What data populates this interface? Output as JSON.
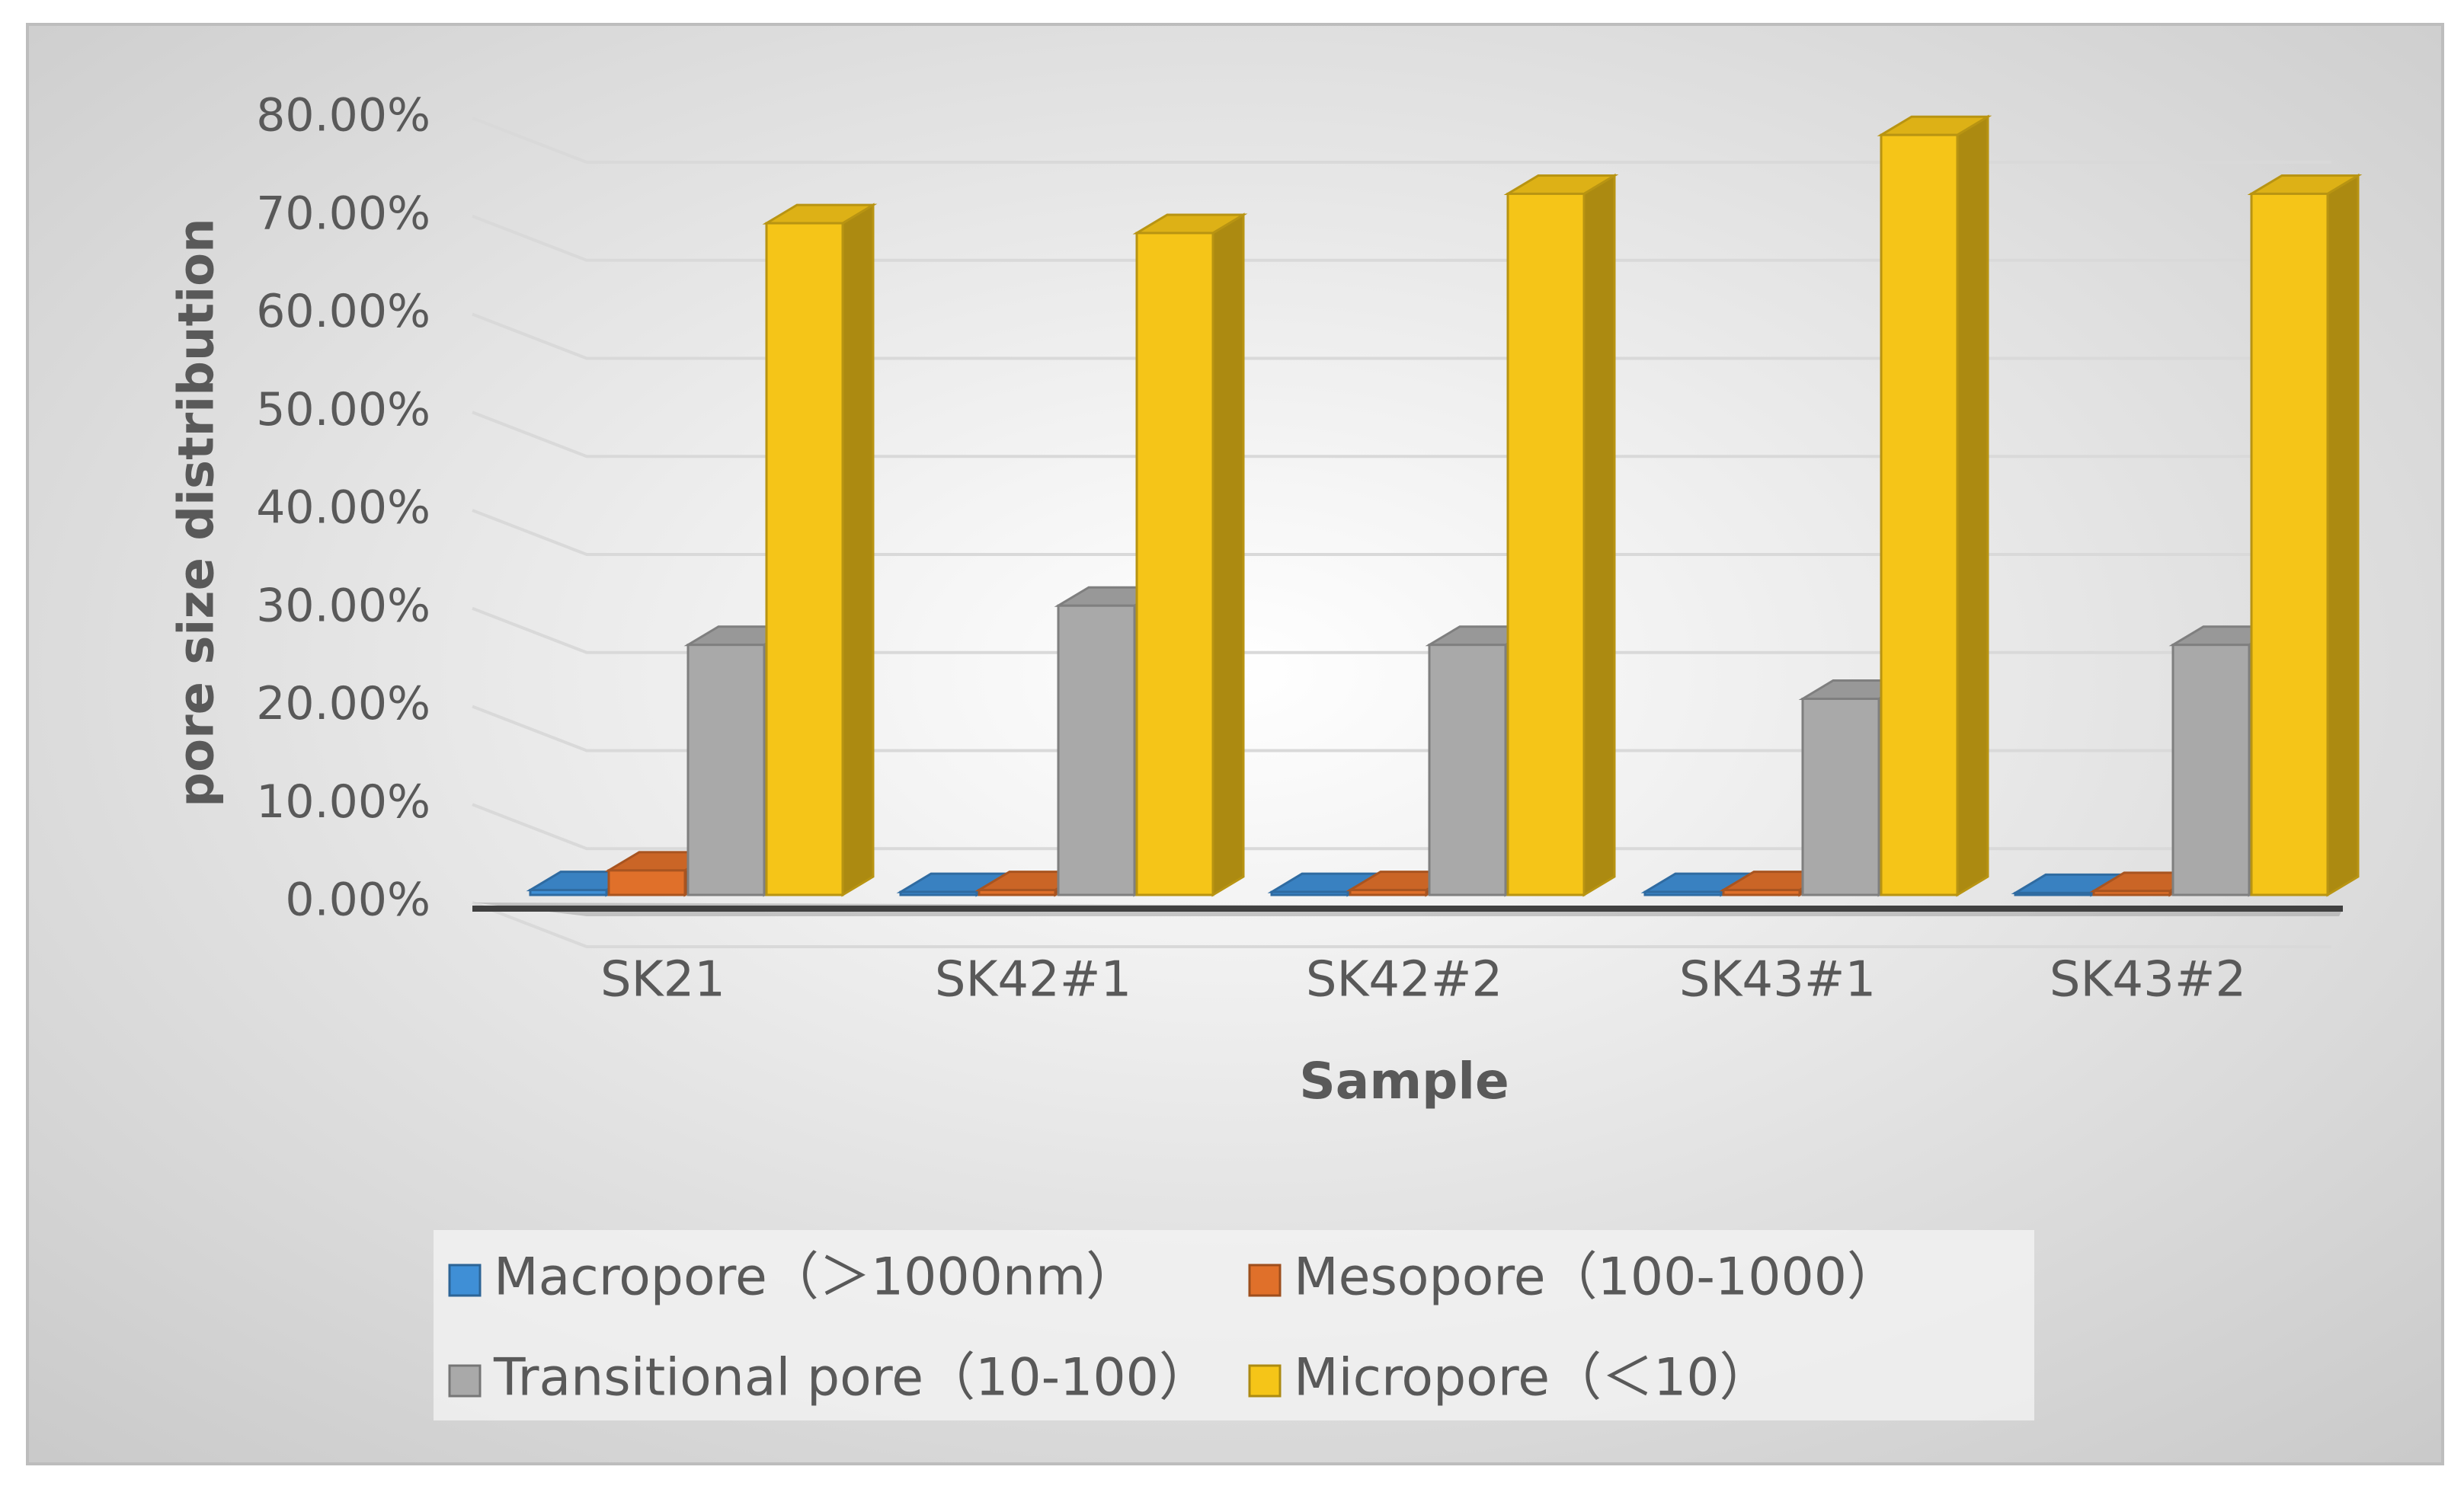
{
  "chart_data": {
    "type": "bar3d",
    "x_label": "Sample",
    "y_label": "pore size distribution",
    "categories": [
      "SK21",
      "SK42#1",
      "SK42#2",
      "SK43#1",
      "SK43#2"
    ],
    "series": [
      {
        "name": "Macropore（＞1000nm）",
        "color": "#3f8fd6",
        "values": [
          0.5,
          0.3,
          0.3,
          0.3,
          0.2
        ]
      },
      {
        "name": "Mesopore（100-1000）",
        "color": "#e0702a",
        "values": [
          2.5,
          0.5,
          0.5,
          0.5,
          0.4
        ]
      },
      {
        "name": "Transitional pore（10-100）",
        "color": "#a9a9a9",
        "values": [
          25.5,
          29.5,
          25.5,
          20,
          25.5
        ]
      },
      {
        "name": "Micropore（＜10）",
        "color": "#f5c518",
        "values": [
          68.5,
          67.5,
          71.5,
          77.5,
          71.5
        ]
      }
    ],
    "ylim": [
      0,
      80
    ],
    "yticks": [
      {
        "value": 0,
        "label": "0.00%"
      },
      {
        "value": 10,
        "label": "10.00%"
      },
      {
        "value": 20,
        "label": "20.00%"
      },
      {
        "value": 30,
        "label": "30.00%"
      },
      {
        "value": 40,
        "label": "40.00%"
      },
      {
        "value": 50,
        "label": "50.00%"
      },
      {
        "value": 60,
        "label": "60.00%"
      },
      {
        "value": 70,
        "label": "70.00%"
      },
      {
        "value": 80,
        "label": "80.00%"
      }
    ],
    "grid": true,
    "legend": "bottom"
  }
}
